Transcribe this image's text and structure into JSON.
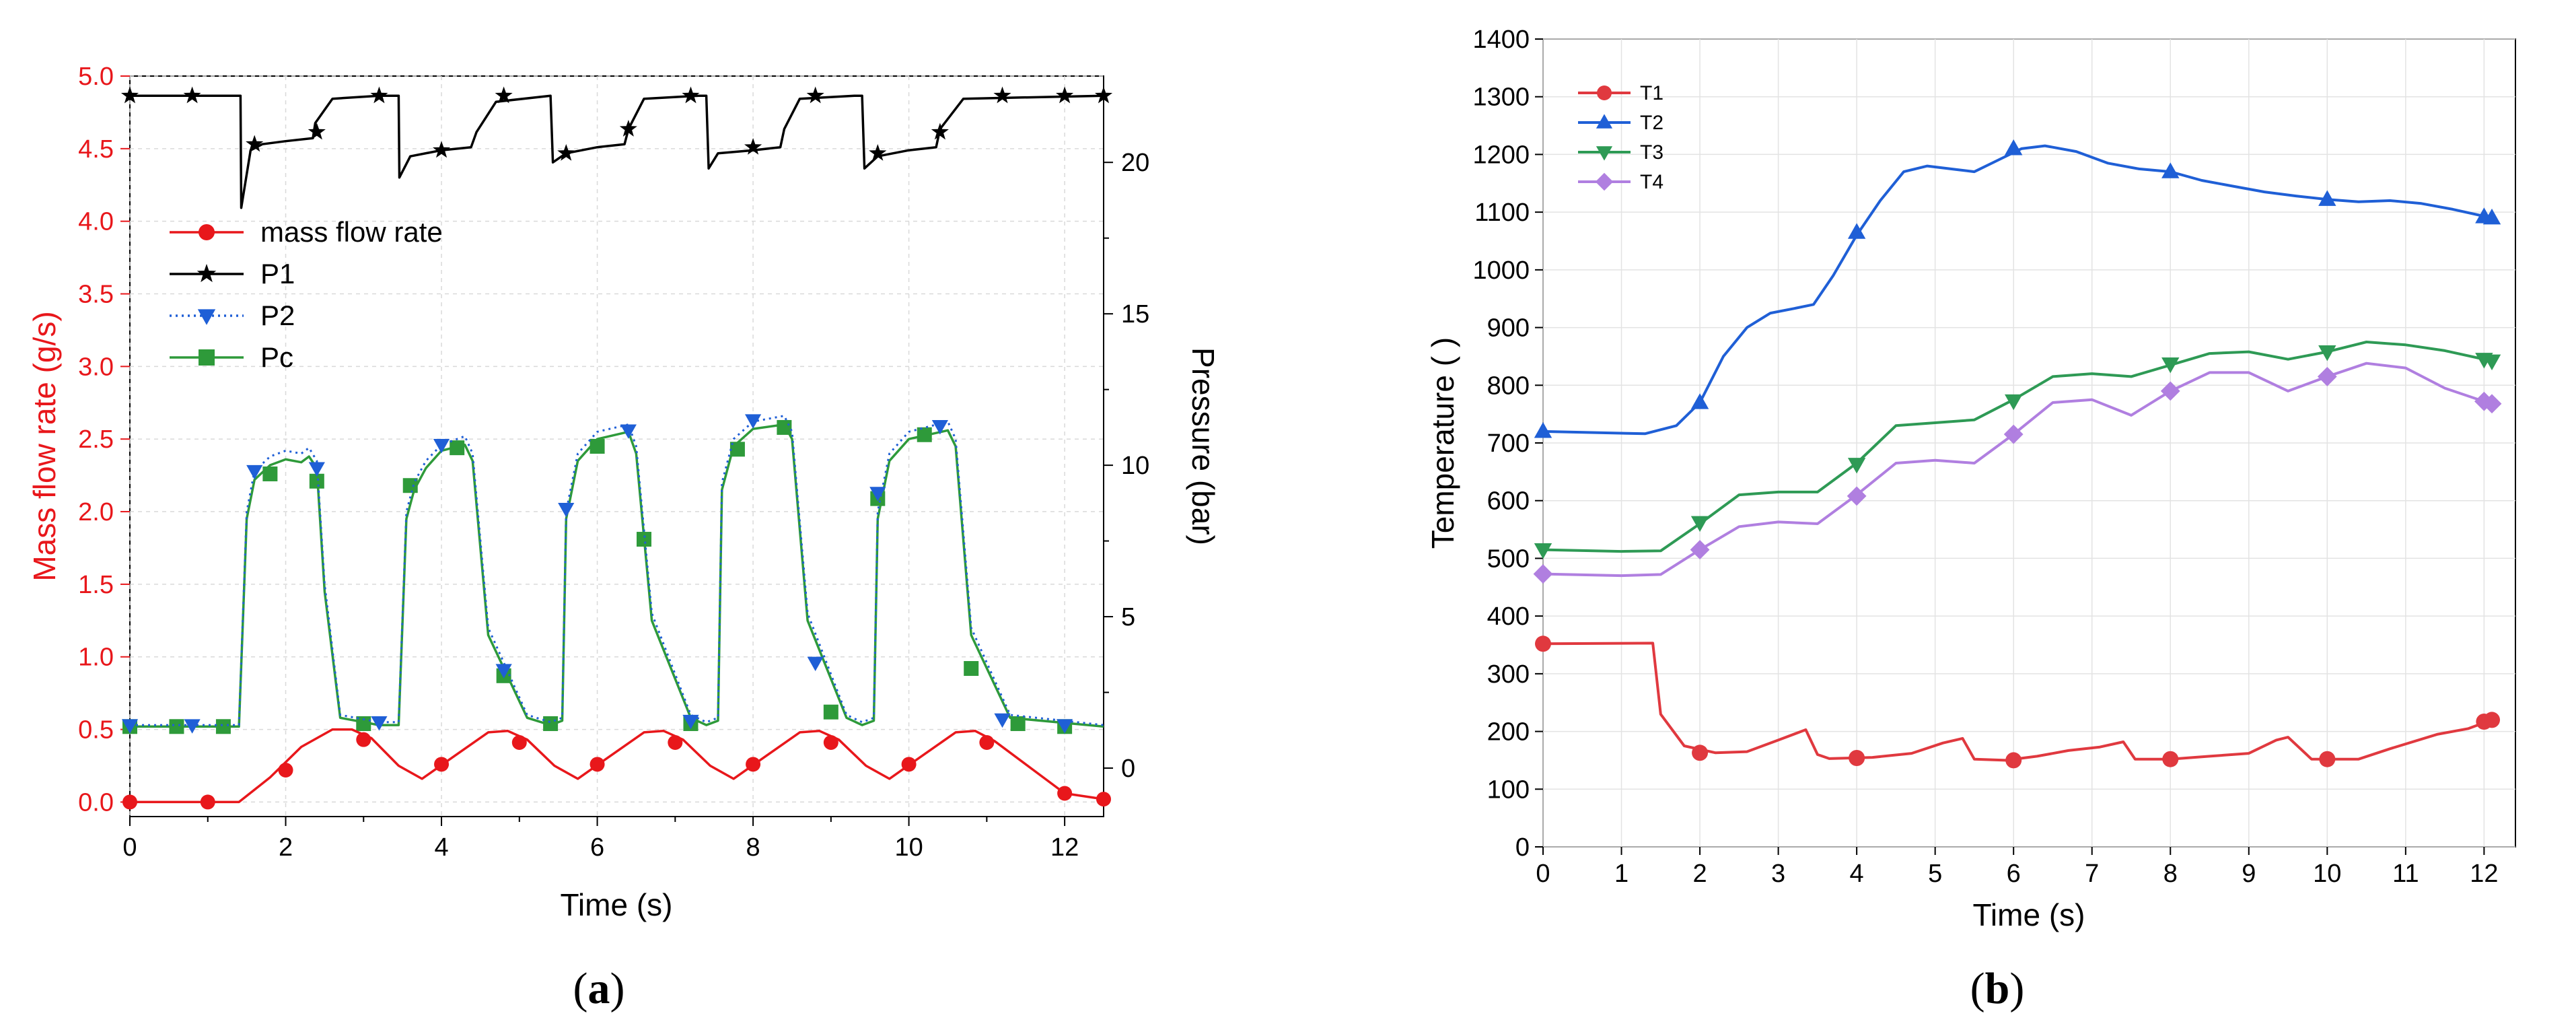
{
  "chart_data": [
    {
      "type": "line",
      "panel_label": "(a)",
      "caption_open": "(",
      "caption_letter": "a",
      "caption_close": ")",
      "xlabel": "Time (s)",
      "ylabel_left": "Mass flow rate (g/s)",
      "ylabel_right": "Pressure (bar)",
      "xlim": [
        0,
        12.5
      ],
      "ylim_left": [
        -0.1,
        5.0
      ],
      "ylim_right": [
        -1.6,
        22.85
      ],
      "xticks": [
        "0",
        "2",
        "4",
        "6",
        "8",
        "10",
        "12"
      ],
      "yticks_left": [
        "0.0",
        "0.5",
        "1.0",
        "1.5",
        "2.0",
        "2.5",
        "3.0",
        "3.5",
        "4.0",
        "4.5",
        "5.0"
      ],
      "yticks_right": [
        "0",
        "5",
        "10",
        "15",
        "20"
      ],
      "grid": true,
      "legend_position": "upper-left",
      "series": [
        {
          "name": "mass flow rate",
          "axis": "left",
          "color": "#e8171b",
          "marker": "circle",
          "x": [
            0,
            1.4,
            1.8,
            2.2,
            2.6,
            2.85,
            3.1,
            3.45,
            3.75,
            4.2,
            4.6,
            4.85,
            5.1,
            5.45,
            5.75,
            6.2,
            6.6,
            6.85,
            7.1,
            7.45,
            7.75,
            8.2,
            8.6,
            8.85,
            9.1,
            9.45,
            9.75,
            10.2,
            10.6,
            10.85,
            11.1,
            11.6,
            12.0,
            12.5
          ],
          "values": [
            0,
            0,
            0.17,
            0.38,
            0.5,
            0.5,
            0.44,
            0.25,
            0.16,
            0.33,
            0.48,
            0.49,
            0.43,
            0.25,
            0.16,
            0.33,
            0.48,
            0.49,
            0.43,
            0.25,
            0.16,
            0.33,
            0.48,
            0.49,
            0.43,
            0.25,
            0.16,
            0.33,
            0.48,
            0.49,
            0.42,
            0.22,
            0.06,
            0.02
          ],
          "marker_x": [
            0,
            1,
            2,
            3,
            4,
            5,
            6,
            7,
            8,
            9,
            10,
            11,
            12,
            12.5
          ],
          "marker_y": [
            0,
            0,
            0.22,
            0.43,
            0.26,
            0.41,
            0.26,
            0.41,
            0.26,
            0.41,
            0.26,
            0.41,
            0.06,
            0.02
          ]
        },
        {
          "name": "P1",
          "axis": "right",
          "color": "#000000",
          "marker": "star",
          "x": [
            0,
            1.42,
            1.43,
            1.55,
            1.7,
            2.0,
            2.35,
            2.38,
            2.6,
            3.2,
            3.45,
            3.46,
            3.6,
            4.0,
            4.38,
            4.45,
            4.7,
            5.4,
            5.43,
            5.6,
            6.0,
            6.35,
            6.4,
            6.6,
            7.3,
            7.4,
            7.43,
            7.55,
            8.0,
            8.35,
            8.4,
            8.6,
            9.3,
            9.4,
            9.43,
            9.6,
            10.0,
            10.35,
            10.4,
            10.7,
            12.5
          ],
          "values": [
            22.2,
            22.2,
            18.5,
            20.4,
            20.6,
            20.7,
            20.8,
            21.3,
            22.1,
            22.2,
            22.2,
            19.5,
            20.2,
            20.4,
            20.5,
            21.0,
            22.0,
            22.2,
            20.0,
            20.3,
            20.5,
            20.6,
            21.1,
            22.1,
            22.2,
            22.2,
            19.8,
            20.3,
            20.4,
            20.5,
            21.1,
            22.1,
            22.2,
            22.2,
            19.8,
            20.2,
            20.4,
            20.5,
            21.1,
            22.1,
            22.2
          ],
          "marker_x": [
            0,
            0.8,
            1.6,
            2.4,
            3.2,
            4.0,
            4.8,
            5.6,
            6.4,
            7.2,
            8.0,
            8.8,
            9.6,
            10.4,
            11.2,
            12.0,
            12.5
          ],
          "marker_y": [
            22.2,
            22.2,
            20.6,
            21.0,
            22.2,
            20.4,
            22.2,
            20.3,
            21.1,
            22.2,
            20.5,
            22.2,
            20.3,
            21.0,
            22.2,
            22.2,
            22.2
          ]
        },
        {
          "name": "P2",
          "axis": "left",
          "color": "#1f5fd6",
          "marker": "triangle-down",
          "x": [
            0,
            1.4,
            1.5,
            1.6,
            1.8,
            2.0,
            2.2,
            2.3,
            2.4,
            2.5,
            2.7,
            3.2,
            3.45,
            3.55,
            3.65,
            3.8,
            4.0,
            4.3,
            4.4,
            4.6,
            5.1,
            5.4,
            5.55,
            5.6,
            5.75,
            6.0,
            6.4,
            6.5,
            6.7,
            7.2,
            7.4,
            7.55,
            7.6,
            7.75,
            8.0,
            8.4,
            8.5,
            8.7,
            9.2,
            9.4,
            9.55,
            9.6,
            9.75,
            10.0,
            10.5,
            10.6,
            10.8,
            11.3,
            12.5
          ],
          "values": [
            0.53,
            0.53,
            2.0,
            2.28,
            2.38,
            2.42,
            2.4,
            2.44,
            2.35,
            1.5,
            0.6,
            0.55,
            0.55,
            2.0,
            2.2,
            2.35,
            2.46,
            2.52,
            2.4,
            1.2,
            0.6,
            0.55,
            0.58,
            2.0,
            2.4,
            2.55,
            2.6,
            2.45,
            1.3,
            0.6,
            0.55,
            0.58,
            2.2,
            2.5,
            2.62,
            2.66,
            2.55,
            1.3,
            0.6,
            0.55,
            0.58,
            2.0,
            2.4,
            2.55,
            2.62,
            2.5,
            1.2,
            0.6,
            0.53
          ],
          "marker_x": [
            0,
            0.8,
            1.6,
            2.4,
            3.2,
            4.0,
            4.8,
            5.6,
            6.4,
            7.2,
            8.0,
            8.8,
            9.6,
            10.4,
            11.2,
            12.0
          ],
          "marker_y": [
            0.53,
            0.53,
            2.28,
            2.3,
            0.55,
            2.46,
            0.91,
            2.02,
            2.56,
            0.56,
            2.63,
            0.96,
            2.13,
            2.59,
            0.57,
            0.53
          ]
        },
        {
          "name": "Pc",
          "axis": "left",
          "color": "#2e9a3a",
          "marker": "square",
          "x": [
            0,
            1.4,
            1.5,
            1.6,
            1.8,
            2.0,
            2.2,
            2.3,
            2.4,
            2.5,
            2.7,
            3.2,
            3.45,
            3.55,
            3.65,
            3.8,
            4.0,
            4.3,
            4.4,
            4.6,
            5.1,
            5.4,
            5.55,
            5.6,
            5.75,
            6.0,
            6.4,
            6.5,
            6.7,
            7.2,
            7.4,
            7.55,
            7.6,
            7.75,
            8.0,
            8.4,
            8.5,
            8.7,
            9.2,
            9.4,
            9.55,
            9.6,
            9.75,
            10.0,
            10.5,
            10.6,
            10.8,
            11.3,
            12.5
          ],
          "values": [
            0.52,
            0.52,
            1.95,
            2.22,
            2.32,
            2.36,
            2.34,
            2.38,
            2.3,
            1.45,
            0.58,
            0.53,
            0.53,
            1.95,
            2.15,
            2.3,
            2.42,
            2.46,
            2.35,
            1.15,
            0.58,
            0.53,
            0.56,
            1.95,
            2.35,
            2.5,
            2.55,
            2.4,
            1.25,
            0.58,
            0.53,
            0.56,
            2.15,
            2.45,
            2.57,
            2.6,
            2.5,
            1.25,
            0.58,
            0.53,
            0.56,
            1.95,
            2.35,
            2.5,
            2.56,
            2.45,
            1.15,
            0.58,
            0.52
          ],
          "marker_x": [
            0,
            0.6,
            1.2,
            1.8,
            2.4,
            3.0,
            3.6,
            4.2,
            4.8,
            5.4,
            6.0,
            6.6,
            7.2,
            7.8,
            8.4,
            9.0,
            9.6,
            10.2,
            10.8,
            11.4,
            12.0
          ],
          "marker_y": [
            0.52,
            0.52,
            0.52,
            2.26,
            2.21,
            0.54,
            2.18,
            2.44,
            0.87,
            0.54,
            2.45,
            1.81,
            0.54,
            2.43,
            2.58,
            0.62,
            2.09,
            2.53,
            0.92,
            0.54,
            0.52
          ]
        }
      ]
    },
    {
      "type": "line",
      "panel_label": "(b)",
      "caption_open": "(",
      "caption_letter": "b",
      "caption_close": ")",
      "xlabel": "Time (s)",
      "ylabel": "Temperature (   )",
      "xlim": [
        0,
        12.4
      ],
      "ylim": [
        0,
        1400
      ],
      "xticks": [
        "0",
        "1",
        "2",
        "3",
        "4",
        "5",
        "6",
        "7",
        "8",
        "9",
        "10",
        "11",
        "12"
      ],
      "yticks": [
        "0",
        "100",
        "200",
        "300",
        "400",
        "500",
        "600",
        "700",
        "800",
        "900",
        "1000",
        "1100",
        "1200",
        "1300",
        "1400"
      ],
      "grid": true,
      "legend_position": "upper-left",
      "series": [
        {
          "name": "T1",
          "color": "#e0393f",
          "marker": "circle",
          "x": [
            0,
            1.4,
            1.5,
            1.8,
            2.2,
            2.6,
            3.0,
            3.35,
            3.5,
            3.65,
            4.2,
            4.7,
            5.1,
            5.35,
            5.5,
            5.9,
            6.3,
            6.7,
            7.1,
            7.4,
            7.55,
            8.0,
            8.5,
            9.0,
            9.35,
            9.5,
            9.8,
            10.4,
            10.8,
            11.4,
            11.8,
            12.1
          ],
          "values": [
            352,
            353,
            230,
            175,
            163,
            165,
            185,
            203,
            160,
            153,
            155,
            162,
            180,
            188,
            152,
            150,
            157,
            167,
            173,
            182,
            152,
            152,
            157,
            162,
            185,
            190,
            152,
            152,
            170,
            195,
            205,
            220
          ],
          "marker_x": [
            0,
            2,
            4,
            6,
            8,
            10,
            12,
            12.1
          ],
          "marker_y": [
            352,
            163,
            154,
            150,
            152,
            152,
            217,
            220
          ]
        },
        {
          "name": "T2",
          "color": "#1f5fd6",
          "marker": "triangle-up",
          "x": [
            0,
            1.3,
            1.7,
            2.0,
            2.3,
            2.6,
            2.9,
            3.2,
            3.45,
            3.7,
            4.0,
            4.3,
            4.6,
            4.9,
            5.2,
            5.5,
            5.8,
            6.1,
            6.4,
            6.8,
            7.2,
            7.6,
            8.0,
            8.4,
            8.8,
            9.2,
            9.6,
            10.0,
            10.4,
            10.8,
            11.2,
            11.6,
            12.1
          ],
          "values": [
            720,
            716,
            730,
            770,
            850,
            900,
            925,
            933,
            940,
            990,
            1060,
            1120,
            1170,
            1180,
            1175,
            1170,
            1190,
            1210,
            1215,
            1205,
            1185,
            1175,
            1170,
            1155,
            1145,
            1135,
            1128,
            1122,
            1118,
            1120,
            1115,
            1105,
            1090
          ],
          "marker_x": [
            0,
            2,
            4,
            6,
            8,
            10,
            12,
            12.1
          ],
          "marker_y": [
            720,
            770,
            1065,
            1210,
            1170,
            1122,
            1092,
            1090
          ]
        },
        {
          "name": "T3",
          "color": "#2e9a55",
          "marker": "triangle-down",
          "x": [
            0,
            1.0,
            1.5,
            2.0,
            2.5,
            3.0,
            3.5,
            4.0,
            4.5,
            5.0,
            5.5,
            6.0,
            6.5,
            7.0,
            7.5,
            8.0,
            8.5,
            9.0,
            9.5,
            10.0,
            10.5,
            11.0,
            11.5,
            12.0,
            12.1
          ],
          "values": [
            515,
            512,
            513,
            560,
            610,
            615,
            615,
            665,
            730,
            735,
            740,
            775,
            815,
            820,
            815,
            835,
            855,
            858,
            845,
            858,
            875,
            870,
            860,
            845,
            842
          ],
          "marker_x": [
            0,
            2,
            4,
            6,
            8,
            10,
            12,
            12.1
          ],
          "marker_y": [
            515,
            562,
            663,
            773,
            837,
            858,
            845,
            842
          ]
        },
        {
          "name": "T4",
          "color": "#b07fe0",
          "marker": "diamond",
          "x": [
            0,
            1.0,
            1.5,
            2.0,
            2.5,
            3.0,
            3.5,
            4.0,
            4.5,
            5.0,
            5.5,
            6.0,
            6.5,
            7.0,
            7.5,
            8.0,
            8.5,
            9.0,
            9.5,
            10.0,
            10.5,
            11.0,
            11.5,
            12.0,
            12.1
          ],
          "values": [
            473,
            470,
            472,
            515,
            555,
            563,
            560,
            610,
            665,
            670,
            665,
            715,
            770,
            775,
            748,
            790,
            822,
            822,
            790,
            815,
            838,
            830,
            795,
            772,
            768
          ],
          "marker_x": [
            0,
            2,
            4,
            6,
            8,
            10,
            12,
            12.1
          ],
          "marker_y": [
            473,
            515,
            608,
            715,
            790,
            815,
            772,
            768
          ]
        }
      ]
    }
  ]
}
